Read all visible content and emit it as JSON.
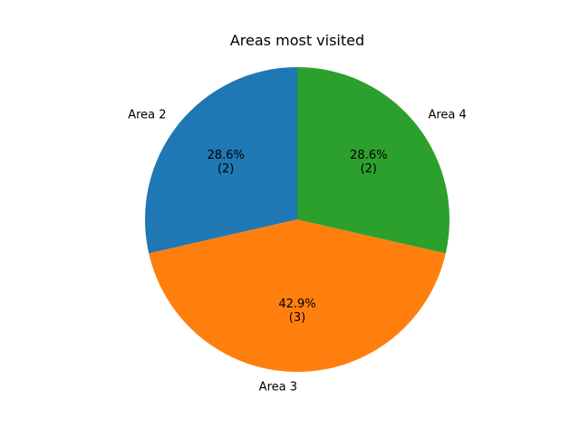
{
  "chart_data": {
    "type": "pie",
    "title": "Areas most visited",
    "categories": [
      "Area 2",
      "Area 3",
      "Area 4"
    ],
    "values": [
      2,
      3,
      2
    ],
    "percent_labels": [
      "28.6%\n(2)",
      "42.9%\n(3)",
      "28.6%\n(2)"
    ],
    "colors": [
      "#1f77b4",
      "#ff7f0e",
      "#2ca02c"
    ],
    "start_angle_deg": 90,
    "direction": "counterclockwise",
    "legend": "none"
  }
}
